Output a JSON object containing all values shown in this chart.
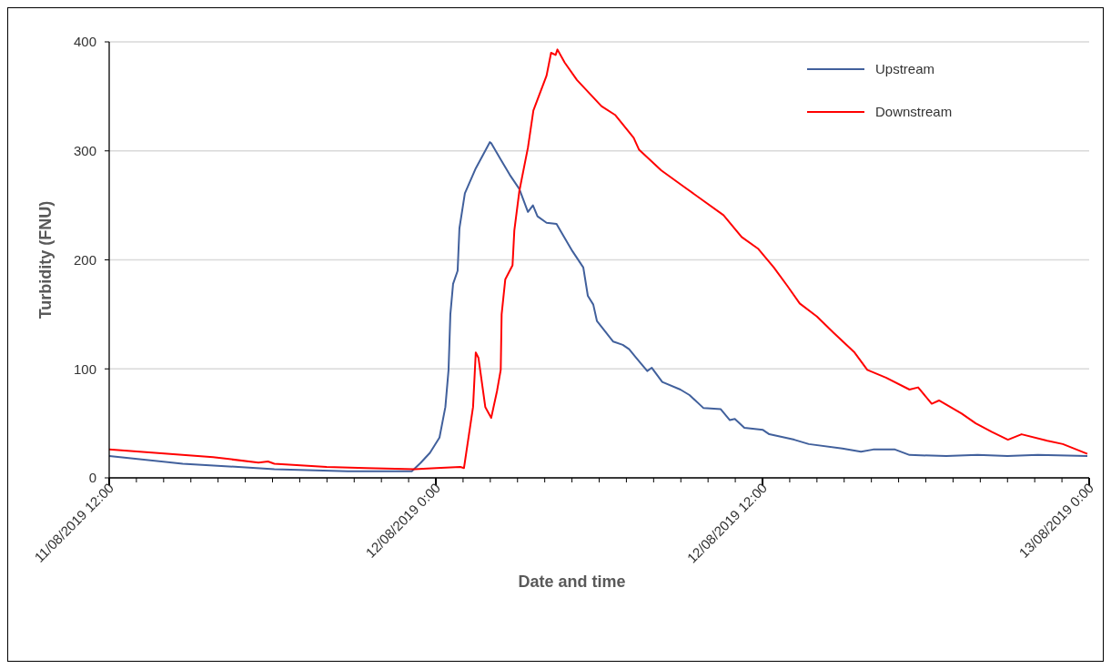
{
  "chart_data": {
    "type": "line",
    "xlabel": "Date and time",
    "ylabel": "Turbidity (FNU)",
    "xlim": [
      "2019-08-11T12:00",
      "2019-08-13T00:00"
    ],
    "ylim": [
      0,
      400
    ],
    "yticks": [
      0,
      100,
      200,
      300,
      400
    ],
    "xticks": [
      {
        "value": "2019-08-11T12:00",
        "label": "11/08/2019 12:00"
      },
      {
        "value": "2019-08-11T13:00",
        "label": null
      },
      {
        "value": "2019-08-11T14:00",
        "label": null
      },
      {
        "value": "2019-08-11T15:00",
        "label": null
      },
      {
        "value": "2019-08-11T16:00",
        "label": null
      },
      {
        "value": "2019-08-11T17:00",
        "label": null
      },
      {
        "value": "2019-08-11T18:00",
        "label": null
      },
      {
        "value": "2019-08-11T19:00",
        "label": null
      },
      {
        "value": "2019-08-11T20:00",
        "label": null
      },
      {
        "value": "2019-08-11T21:00",
        "label": null
      },
      {
        "value": "2019-08-11T22:00",
        "label": null
      },
      {
        "value": "2019-08-11T23:00",
        "label": null
      },
      {
        "value": "2019-08-12T00:00",
        "label": "12/08/2019 0:00"
      },
      {
        "value": "2019-08-12T01:00",
        "label": null
      },
      {
        "value": "2019-08-12T02:00",
        "label": null
      },
      {
        "value": "2019-08-12T03:00",
        "label": null
      },
      {
        "value": "2019-08-12T04:00",
        "label": null
      },
      {
        "value": "2019-08-12T05:00",
        "label": null
      },
      {
        "value": "2019-08-12T06:00",
        "label": null
      },
      {
        "value": "2019-08-12T07:00",
        "label": null
      },
      {
        "value": "2019-08-12T08:00",
        "label": null
      },
      {
        "value": "2019-08-12T09:00",
        "label": null
      },
      {
        "value": "2019-08-12T10:00",
        "label": null
      },
      {
        "value": "2019-08-12T11:00",
        "label": null
      },
      {
        "value": "2019-08-12T12:00",
        "label": "12/08/2019 12:00"
      },
      {
        "value": "2019-08-12T13:00",
        "label": null
      },
      {
        "value": "2019-08-12T14:00",
        "label": null
      },
      {
        "value": "2019-08-12T15:00",
        "label": null
      },
      {
        "value": "2019-08-12T16:00",
        "label": null
      },
      {
        "value": "2019-08-12T17:00",
        "label": null
      },
      {
        "value": "2019-08-12T18:00",
        "label": null
      },
      {
        "value": "2019-08-12T19:00",
        "label": null
      },
      {
        "value": "2019-08-12T20:00",
        "label": null
      },
      {
        "value": "2019-08-12T21:00",
        "label": null
      },
      {
        "value": "2019-08-12T22:00",
        "label": null
      },
      {
        "value": "2019-08-12T23:00",
        "label": null
      },
      {
        "value": "2019-08-13T00:00",
        "label": "13/08/2019 0:00"
      }
    ],
    "grid": "y",
    "legend": "top right",
    "marker": "none",
    "line_style": "solid",
    "series": [
      {
        "name": "Upstream",
        "color": "#41609c",
        "x": [
          "2019-08-11T12:00",
          "2019-08-11T14:42",
          "2019-08-11T18:04",
          "2019-08-11T20:46",
          "2019-08-11T23:07",
          "2019-08-11T23:27",
          "2019-08-11T23:47",
          "2019-08-12T00:08",
          "2019-08-12T00:21",
          "2019-08-12T00:28",
          "2019-08-12T00:32",
          "2019-08-12T00:38",
          "2019-08-12T00:48",
          "2019-08-12T00:52",
          "2019-08-12T01:04",
          "2019-08-12T01:28",
          "2019-08-12T01:59",
          "2019-08-12T02:02",
          "2019-08-12T02:23",
          "2019-08-12T02:43",
          "2019-08-12T03:04",
          "2019-08-12T03:23",
          "2019-08-12T03:34",
          "2019-08-12T03:44",
          "2019-08-12T04:04",
          "2019-08-12T04:26",
          "2019-08-12T04:37",
          "2019-08-12T05:01",
          "2019-08-12T05:25",
          "2019-08-12T05:35",
          "2019-08-12T05:47",
          "2019-08-12T05:55",
          "2019-08-12T06:31",
          "2019-08-12T06:52",
          "2019-08-12T07:06",
          "2019-08-12T07:22",
          "2019-08-12T07:46",
          "2019-08-12T07:56",
          "2019-08-12T08:19",
          "2019-08-12T08:59",
          "2019-08-12T09:19",
          "2019-08-12T09:50",
          "2019-08-12T10:28",
          "2019-08-12T10:48",
          "2019-08-12T10:59",
          "2019-08-12T11:20",
          "2019-08-12T12:01",
          "2019-08-12T12:15",
          "2019-08-12T13:10",
          "2019-08-12T13:42",
          "2019-08-12T14:56",
          "2019-08-12T15:37",
          "2019-08-12T16:04",
          "2019-08-12T16:52",
          "2019-08-12T17:24",
          "2019-08-12T18:45",
          "2019-08-12T19:54",
          "2019-08-12T21:00",
          "2019-08-12T22:07",
          "2019-08-12T23:56"
        ],
        "values": [
          20,
          13,
          8,
          6,
          6,
          14,
          23,
          37,
          65,
          99,
          150,
          178,
          190,
          229,
          261,
          284,
          308,
          307,
          292,
          278,
          265,
          244,
          250,
          240,
          234,
          233,
          225,
          208,
          193,
          167,
          159,
          144,
          125,
          122,
          118,
          110,
          98,
          101,
          88,
          81,
          76,
          64,
          63,
          53,
          54,
          46,
          44,
          40,
          35,
          31,
          27,
          24,
          26,
          26,
          21,
          20,
          21,
          20,
          21,
          20
        ]
      },
      {
        "name": "Downstream",
        "color": "#ff0000",
        "x": [
          "2019-08-11T12:00",
          "2019-08-11T15:49",
          "2019-08-11T17:29",
          "2019-08-11T17:50",
          "2019-08-11T18:04",
          "2019-08-11T19:59",
          "2019-08-11T21:26",
          "2019-08-11T23:13",
          "2019-08-12T00:01",
          "2019-08-12T00:54",
          "2019-08-12T01:02",
          "2019-08-12T01:22",
          "2019-08-12T01:28",
          "2019-08-12T01:34",
          "2019-08-12T01:49",
          "2019-08-12T02:02",
          "2019-08-12T02:15",
          "2019-08-12T02:23",
          "2019-08-12T02:25",
          "2019-08-12T02:33",
          "2019-08-12T02:49",
          "2019-08-12T02:53",
          "2019-08-12T03:04",
          "2019-08-12T03:23",
          "2019-08-12T03:35",
          "2019-08-12T04:04",
          "2019-08-12T04:14",
          "2019-08-12T04:24",
          "2019-08-12T04:28",
          "2019-08-12T04:44",
          "2019-08-12T05:11",
          "2019-08-12T06:05",
          "2019-08-12T06:35",
          "2019-08-12T07:16",
          "2019-08-12T07:28",
          "2019-08-12T08:17",
          "2019-08-12T09:07",
          "2019-08-12T10:34",
          "2019-08-12T11:14",
          "2019-08-12T11:51",
          "2019-08-12T12:25",
          "2019-08-12T12:55",
          "2019-08-12T13:22",
          "2019-08-12T14:00",
          "2019-08-12T14:37",
          "2019-08-12T15:23",
          "2019-08-12T15:51",
          "2019-08-12T16:32",
          "2019-08-12T17:24",
          "2019-08-12T17:43",
          "2019-08-12T18:13",
          "2019-08-12T18:29",
          "2019-08-12T19:19",
          "2019-08-12T19:50",
          "2019-08-12T20:26",
          "2019-08-12T21:01",
          "2019-08-12T21:31",
          "2019-08-12T22:28",
          "2019-08-12T23:02",
          "2019-08-12T23:56"
        ],
        "values": [
          26,
          19,
          14,
          15,
          13,
          10,
          9,
          8,
          9,
          10,
          9,
          65,
          115,
          110,
          65,
          55,
          80,
          99,
          150,
          182,
          195,
          227,
          263,
          303,
          337,
          369,
          390,
          388,
          393,
          381,
          365,
          341,
          333,
          312,
          301,
          282,
          267,
          241,
          221,
          210,
          193,
          176,
          160,
          148,
          133,
          115,
          99,
          92,
          81,
          83,
          68,
          71,
          59,
          50,
          42,
          35,
          40,
          34,
          31,
          22
        ]
      }
    ]
  }
}
